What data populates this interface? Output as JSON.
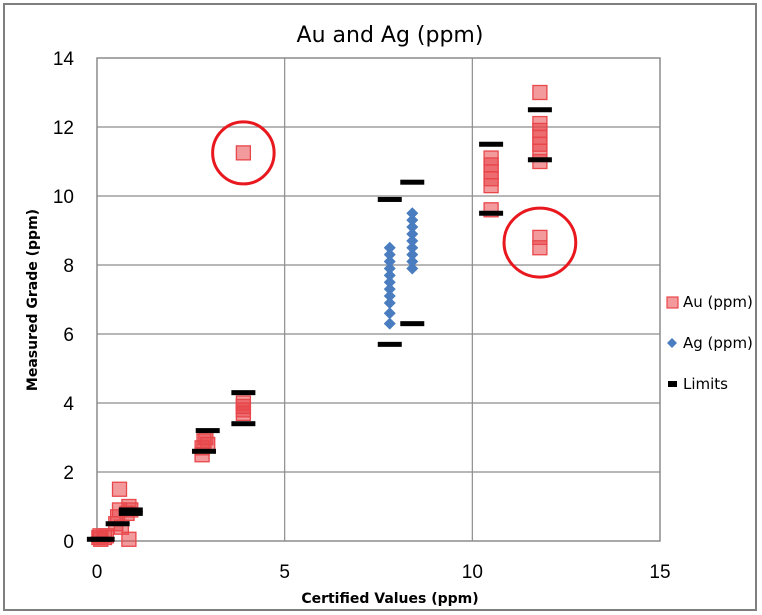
{
  "chart_data": {
    "type": "scatter",
    "title": "Au and Ag (ppm)",
    "xlabel": "Certified Values (ppm)",
    "ylabel": "Measured Grade (ppm)",
    "xlim": [
      0,
      15
    ],
    "ylim": [
      0,
      14
    ],
    "x_ticks": [
      "0",
      "5",
      "10",
      "15"
    ],
    "y_ticks": [
      "0",
      "2",
      "4",
      "6",
      "8",
      "10",
      "12",
      "14"
    ],
    "grid": true,
    "legend_position": "right",
    "series": [
      {
        "name": "Au (ppm)",
        "marker": "square",
        "color": "#e8474b",
        "points": [
          [
            0.05,
            0.1
          ],
          [
            0.08,
            0.15
          ],
          [
            0.1,
            0.05
          ],
          [
            0.2,
            0.1
          ],
          [
            0.25,
            0.15
          ],
          [
            0.5,
            0.5
          ],
          [
            0.55,
            0.7
          ],
          [
            0.6,
            0.9
          ],
          [
            0.6,
            1.5
          ],
          [
            0.65,
            0.4
          ],
          [
            0.8,
            0.8
          ],
          [
            0.85,
            1.0
          ],
          [
            0.9,
            0.9
          ],
          [
            0.85,
            0.05
          ],
          [
            2.8,
            2.5
          ],
          [
            2.8,
            2.7
          ],
          [
            2.85,
            2.9
          ],
          [
            2.9,
            3.0
          ],
          [
            2.95,
            2.8
          ],
          [
            3.9,
            3.7
          ],
          [
            3.9,
            3.9
          ],
          [
            3.9,
            4.0
          ],
          [
            3.9,
            3.8
          ],
          [
            3.9,
            11.25
          ],
          [
            10.5,
            9.6
          ],
          [
            10.5,
            10.3
          ],
          [
            10.5,
            10.5
          ],
          [
            10.5,
            10.7
          ],
          [
            10.5,
            10.9
          ],
          [
            10.5,
            11.1
          ],
          [
            11.8,
            11.0
          ],
          [
            11.8,
            11.3
          ],
          [
            11.8,
            11.5
          ],
          [
            11.8,
            11.7
          ],
          [
            11.8,
            11.9
          ],
          [
            11.8,
            12.1
          ],
          [
            11.8,
            13.0
          ],
          [
            11.8,
            8.5
          ],
          [
            11.8,
            8.8
          ]
        ]
      },
      {
        "name": "Ag (ppm)",
        "marker": "diamond",
        "color": "#4a7dc0",
        "points": [
          [
            7.8,
            6.3
          ],
          [
            7.8,
            6.6
          ],
          [
            7.8,
            6.9
          ],
          [
            7.8,
            7.1
          ],
          [
            7.8,
            7.3
          ],
          [
            7.8,
            7.5
          ],
          [
            7.8,
            7.7
          ],
          [
            7.8,
            7.9
          ],
          [
            7.8,
            8.1
          ],
          [
            7.8,
            8.3
          ],
          [
            7.8,
            8.5
          ],
          [
            8.4,
            7.9
          ],
          [
            8.4,
            8.1
          ],
          [
            8.4,
            8.3
          ],
          [
            8.4,
            8.5
          ],
          [
            8.4,
            8.7
          ],
          [
            8.4,
            8.9
          ],
          [
            8.4,
            9.1
          ],
          [
            8.4,
            9.3
          ],
          [
            8.4,
            9.5
          ]
        ]
      },
      {
        "name": "Limits",
        "marker": "dash",
        "color": "#000000",
        "points": [
          [
            0.05,
            0.05
          ],
          [
            0.15,
            0.05
          ],
          [
            0.55,
            0.5
          ],
          [
            0.9,
            0.8
          ],
          [
            0.9,
            0.9
          ],
          [
            2.85,
            2.6
          ],
          [
            2.95,
            3.2
          ],
          [
            3.9,
            3.4
          ],
          [
            3.9,
            4.3
          ],
          [
            7.8,
            5.7
          ],
          [
            7.8,
            9.9
          ],
          [
            8.4,
            6.3
          ],
          [
            8.4,
            10.4
          ],
          [
            10.5,
            9.5
          ],
          [
            10.5,
            11.5
          ],
          [
            11.8,
            11.05
          ],
          [
            11.8,
            12.5
          ]
        ]
      }
    ],
    "annotations": [
      {
        "shape": "circle",
        "color": "#e8181e",
        "x": 3.9,
        "y": 11.25,
        "rx": 0.9,
        "ry": 0.9
      },
      {
        "shape": "circle",
        "color": "#e8181e",
        "x": 11.8,
        "y": 8.65,
        "rx": 1.05,
        "ry": 1.0
      }
    ]
  }
}
